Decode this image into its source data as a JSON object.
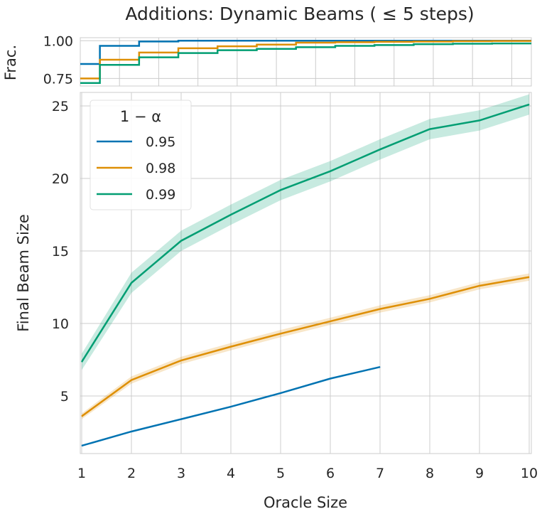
{
  "chart_data": [
    {
      "type": "line",
      "subplot": "top",
      "title": "Additions: Dynamic Beams ( ≤ 5 steps)",
      "ylabel": "Frac.",
      "yticks": [
        "0.75",
        "1.00"
      ],
      "ytick_values": [
        0.75,
        1.0
      ],
      "ylim": [
        0.7,
        1.02
      ],
      "step_edges": [
        0,
        0.5,
        1.5,
        2.5,
        3.5,
        4.5,
        5.5,
        6.5,
        7.5,
        8.5,
        9.5,
        10.5,
        11.5
      ],
      "xlim": [
        0,
        11.5
      ],
      "series": [
        {
          "name": "0.95",
          "color": "#0173b2",
          "values": [
            0.846,
            0.966,
            0.995,
            1.0,
            1.0,
            1.0,
            1.0,
            1.0,
            1.0,
            1.0,
            1.0,
            1.0
          ]
        },
        {
          "name": "0.98",
          "color": "#de8f05",
          "values": [
            0.75,
            0.874,
            0.922,
            0.95,
            0.963,
            0.974,
            0.987,
            0.99,
            0.993,
            0.995,
            0.997,
            0.998
          ]
        },
        {
          "name": "0.99",
          "color": "#029e73",
          "values": [
            0.72,
            0.84,
            0.89,
            0.918,
            0.937,
            0.946,
            0.957,
            0.966,
            0.971,
            0.977,
            0.98,
            0.982
          ]
        }
      ]
    },
    {
      "type": "line",
      "subplot": "main",
      "xlabel": "Oracle Size",
      "ylabel": "Final Beam Size",
      "xlim": [
        1,
        10
      ],
      "ylim": [
        1,
        25.9
      ],
      "xticks": [
        "1",
        "2",
        "3",
        "4",
        "5",
        "6",
        "7",
        "8",
        "9",
        "10"
      ],
      "xtick_values": [
        1,
        2,
        3,
        4,
        5,
        6,
        7,
        8,
        9,
        10
      ],
      "yticks": [
        "5",
        "10",
        "15",
        "20",
        "25"
      ],
      "ytick_values": [
        5,
        10,
        15,
        20,
        25
      ],
      "grid": true,
      "legend": {
        "title": "1 − α",
        "placement": "top-left"
      },
      "series": [
        {
          "name": "0.95",
          "color": "#0173b2",
          "x": [
            1,
            2,
            3,
            4,
            5,
            6,
            7
          ],
          "values": [
            1.57,
            2.55,
            3.4,
            4.26,
            5.2,
            6.2,
            7.0
          ],
          "ci": 0
        },
        {
          "name": "0.98",
          "color": "#de8f05",
          "x": [
            1,
            2,
            3,
            4,
            5,
            6,
            7,
            8,
            9,
            10
          ],
          "values": [
            3.6,
            6.1,
            7.45,
            8.4,
            9.3,
            10.15,
            11.0,
            11.7,
            12.6,
            13.2
          ],
          "ci": 0.25
        },
        {
          "name": "0.99",
          "color": "#029e73",
          "x": [
            1,
            2,
            3,
            4,
            5,
            6,
            7,
            8,
            9,
            10
          ],
          "values": [
            7.35,
            12.8,
            15.7,
            17.5,
            19.2,
            20.5,
            22.0,
            23.4,
            24.0,
            25.1
          ],
          "ci": 0.7
        }
      ]
    }
  ]
}
